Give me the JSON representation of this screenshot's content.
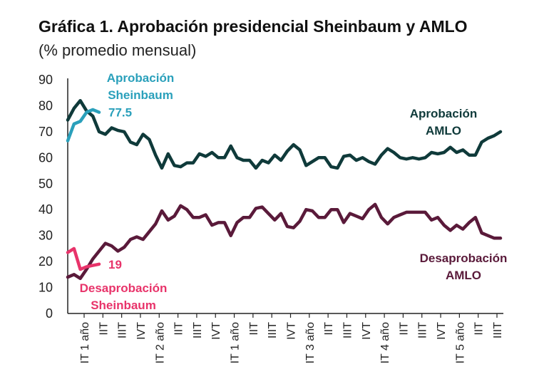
{
  "title": "Gráfica 1. Aprobación presidencial Sheinbaum y AMLO",
  "subtitle": "(% promedio mensual)",
  "chart_data": {
    "type": "line",
    "ylim": [
      0,
      90
    ],
    "yticks": [
      0,
      10,
      20,
      30,
      40,
      50,
      60,
      70,
      80,
      90
    ],
    "x_tick_labels": [
      "IT 1 año",
      "IIT",
      "IIIT",
      "IVT",
      "IT 2 año",
      "IIT",
      "IIIT",
      "IVT",
      "IT 1 año",
      "IIT",
      "IIIT",
      "IVT",
      "IT 3 año",
      "IIT",
      "IIIT",
      "IVT",
      "IT 4 año",
      "IIT",
      "IIIT",
      "IVT",
      "IT 5 año",
      "IIT",
      "IIIT"
    ],
    "grid": false,
    "series": [
      {
        "name": "Aprobación AMLO",
        "color": "#0f3a3a",
        "values": [
          74.5,
          79,
          82,
          78,
          76,
          70,
          69,
          71.5,
          70.5,
          70,
          66,
          65,
          69,
          67,
          61,
          56,
          61.5,
          57,
          56.5,
          58,
          58,
          61.5,
          60.5,
          62,
          60,
          60,
          64.5,
          60,
          59,
          59,
          56,
          59,
          58,
          61,
          59,
          62.5,
          65,
          63,
          57,
          58.5,
          60,
          60,
          56.5,
          56,
          60.5,
          61,
          59,
          60,
          58.5,
          57.5,
          61,
          63.5,
          62,
          60,
          59.5,
          60,
          59.5,
          60,
          62,
          61.5,
          62,
          64,
          62,
          63,
          61,
          61,
          66,
          67.5,
          68.5,
          70
        ]
      },
      {
        "name": "Desaprobación AMLO",
        "color": "#5a1a3a",
        "values": [
          14,
          15,
          13.5,
          17,
          21,
          24,
          27,
          26,
          24,
          25.5,
          28.5,
          29.5,
          28.5,
          31.5,
          34.5,
          39.5,
          36,
          37.5,
          41.5,
          40,
          37,
          37,
          38,
          34,
          35,
          35,
          30,
          35,
          37,
          37,
          40.5,
          41,
          38.5,
          36,
          38.5,
          33.5,
          33,
          35.5,
          40,
          39.5,
          37,
          37,
          40,
          40,
          35,
          38.5,
          37.5,
          36.5,
          40,
          42,
          37,
          34.5,
          37,
          38,
          39,
          39,
          39,
          39,
          36,
          37,
          34,
          32,
          34,
          32.5,
          35,
          37,
          31,
          30,
          29,
          29
        ]
      },
      {
        "name": "Aprobación Sheinbaum",
        "color": "#2aa0bb",
        "values": [
          66.5,
          73,
          74,
          77.5,
          78.5,
          77.5
        ]
      },
      {
        "name": "Desaprobación Sheinbaum",
        "color": "#e8336a",
        "values": [
          23.5,
          25,
          17,
          18,
          18.5,
          19
        ]
      }
    ],
    "annotations": [
      {
        "series": "Aprobación Sheinbaum",
        "text": "77.5"
      },
      {
        "series": "Desaprobación Sheinbaum",
        "text": "19"
      }
    ],
    "labels": {
      "aprob_sheinbaum": [
        "Aprobación",
        "Sheinbaum"
      ],
      "aprob_amlo": [
        "Aprobación",
        "AMLO"
      ],
      "desaprob_amlo": [
        "Desaprobación",
        "AMLO"
      ],
      "desaprob_sheinbaum": [
        "Desaprobación",
        "Sheinbaum"
      ]
    }
  }
}
